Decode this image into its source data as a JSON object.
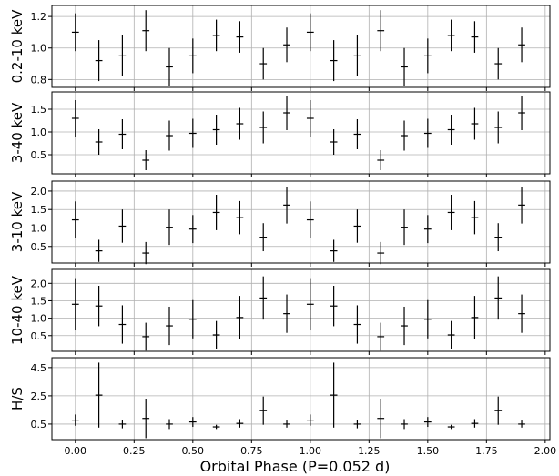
{
  "chart_data": {
    "type": "scatter",
    "xlabel": "Orbital Phase (P=0.052 d)",
    "x_ticks": [
      "0.00",
      "0.25",
      "0.50",
      "0.75",
      "1.00",
      "1.25",
      "1.50",
      "1.75",
      "2.00"
    ],
    "xlim": [
      -0.1,
      2.02
    ],
    "grid": true,
    "x": [
      0.0,
      0.1,
      0.2,
      0.3,
      0.4,
      0.5,
      0.6,
      0.7,
      0.8,
      0.9,
      1.0,
      1.1,
      1.2,
      1.3,
      1.4,
      1.5,
      1.6,
      1.7,
      1.8,
      1.9
    ],
    "x_half_width": 0.015,
    "panels": [
      {
        "ylabel": "0.2-10 keV",
        "ylim": [
          0.75,
          1.27
        ],
        "y_ticks": [
          0.8,
          1.0,
          1.2
        ],
        "y_tick_labels": [
          "0.8",
          "1.0",
          "1.2"
        ],
        "y": [
          1.1,
          0.92,
          0.95,
          1.11,
          0.88,
          0.95,
          1.08,
          1.07,
          0.9,
          1.02,
          1.1,
          0.92,
          0.95,
          1.11,
          0.88,
          0.95,
          1.08,
          1.07,
          0.9,
          1.02
        ],
        "err": [
          0.12,
          0.13,
          0.13,
          0.13,
          0.12,
          0.11,
          0.1,
          0.1,
          0.1,
          0.11,
          0.12,
          0.13,
          0.13,
          0.13,
          0.12,
          0.11,
          0.1,
          0.1,
          0.1,
          0.11
        ]
      },
      {
        "ylabel": "3-40 keV",
        "ylim": [
          0.08,
          1.88
        ],
        "y_ticks": [
          0.5,
          1.0,
          1.5
        ],
        "y_tick_labels": [
          "0.5",
          "1.0",
          "1.5"
        ],
        "y": [
          1.3,
          0.78,
          0.95,
          0.38,
          0.92,
          0.97,
          1.05,
          1.18,
          1.1,
          1.42,
          1.3,
          0.78,
          0.95,
          0.38,
          0.92,
          0.97,
          1.05,
          1.18,
          1.1,
          1.42
        ],
        "err": [
          0.4,
          0.28,
          0.33,
          0.22,
          0.33,
          0.32,
          0.33,
          0.35,
          0.35,
          0.38,
          0.4,
          0.28,
          0.33,
          0.22,
          0.33,
          0.32,
          0.33,
          0.35,
          0.35,
          0.38
        ]
      },
      {
        "ylabel": "3-10 keV",
        "ylim": [
          0.05,
          2.27
        ],
        "y_ticks": [
          0.5,
          1.0,
          1.5,
          2.0
        ],
        "y_tick_labels": [
          "0.5",
          "1.0",
          "1.5",
          "2.0"
        ],
        "y": [
          1.22,
          0.38,
          1.05,
          0.32,
          1.02,
          0.97,
          1.42,
          1.28,
          0.75,
          1.62,
          1.22,
          0.38,
          1.05,
          0.32,
          1.02,
          0.97,
          1.42,
          1.28,
          0.75,
          1.62
        ],
        "err": [
          0.5,
          0.3,
          0.45,
          0.3,
          0.48,
          0.38,
          0.48,
          0.45,
          0.38,
          0.5,
          0.5,
          0.3,
          0.45,
          0.3,
          0.48,
          0.38,
          0.48,
          0.45,
          0.38,
          0.5
        ]
      },
      {
        "ylabel": "10-40 keV",
        "ylim": [
          0.05,
          2.4
        ],
        "y_ticks": [
          0.5,
          1.0,
          1.5,
          2.0
        ],
        "y_tick_labels": [
          "0.5",
          "1.0",
          "1.5",
          "2.0"
        ],
        "y": [
          1.4,
          1.35,
          0.82,
          0.47,
          0.78,
          0.97,
          0.52,
          1.02,
          1.58,
          1.13,
          1.4,
          1.35,
          0.82,
          0.47,
          0.78,
          0.97,
          0.52,
          1.02,
          1.58,
          1.13
        ],
        "err": [
          0.75,
          0.58,
          0.55,
          0.4,
          0.55,
          0.55,
          0.4,
          0.62,
          0.62,
          0.55,
          0.75,
          0.58,
          0.55,
          0.4,
          0.55,
          0.55,
          0.4,
          0.62,
          0.62,
          0.55
        ]
      },
      {
        "ylabel": "H/S",
        "ylim": [
          -0.6,
          5.2
        ],
        "y_ticks": [
          0.5,
          2.5,
          4.5
        ],
        "y_tick_labels": [
          "0.5",
          "2.5",
          "4.5"
        ],
        "y": [
          0.78,
          2.55,
          0.5,
          0.9,
          0.5,
          0.65,
          0.3,
          0.55,
          1.45,
          0.5,
          0.78,
          2.55,
          0.5,
          0.9,
          0.5,
          0.65,
          0.3,
          0.55,
          1.45,
          0.5
        ],
        "err": [
          0.4,
          2.3,
          0.3,
          1.4,
          0.35,
          0.35,
          0.15,
          0.3,
          1.0,
          0.25,
          0.4,
          2.3,
          0.3,
          1.4,
          0.35,
          0.35,
          0.15,
          0.3,
          1.0,
          0.25
        ]
      }
    ]
  }
}
